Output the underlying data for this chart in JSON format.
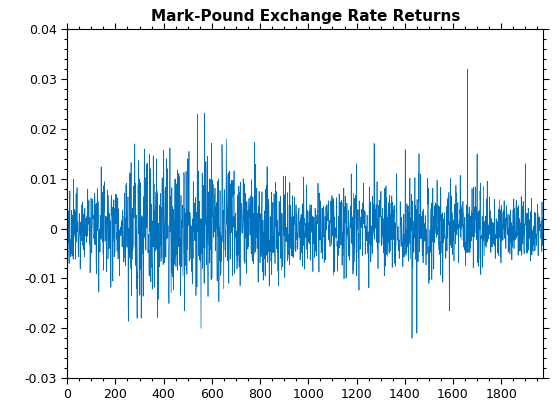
{
  "title": "Mark-Pound Exchange Rate Returns",
  "line_color": "#0072BD",
  "linewidth": 0.5,
  "xlim": [
    0,
    1974
  ],
  "ylim": [
    -0.03,
    0.04
  ],
  "yticks": [
    -0.03,
    -0.02,
    -0.01,
    0.0,
    0.01,
    0.02,
    0.03,
    0.04
  ],
  "xticks": [
    0,
    200,
    400,
    600,
    800,
    1000,
    1200,
    1400,
    1600,
    1800
  ],
  "figsize": [
    5.6,
    4.2
  ],
  "dpi": 100,
  "bg_color": "#FFFFFF",
  "title_fontsize": 11,
  "title_fontweight": "bold",
  "n_points": 1974
}
